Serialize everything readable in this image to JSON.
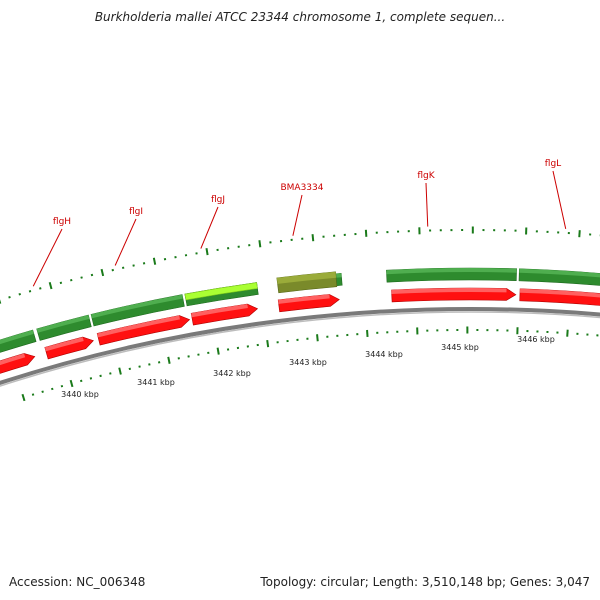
{
  "header": {
    "title": "Burkholderia mallei ATCC 23344 chromosome 1, complete sequen..."
  },
  "footer": {
    "accession": "Accession: NC_006348",
    "summary": "Topology: circular; Length: 3,510,148 bp; Genes: 3,047"
  },
  "gene_labels": [
    "flgH",
    "flgI",
    "flgJ",
    "BMA3334",
    "flgK",
    "flgL"
  ],
  "scale_labels": [
    "3440 kbp",
    "3441 kbp",
    "3442 kbp",
    "3443 kbp",
    "3444 kbp",
    "3445 kbp",
    "3446 kbp"
  ],
  "colors": {
    "cds_red": "#ff1010",
    "gene_green": "#2e8b2e",
    "highlight_lime": "#aaff33",
    "pseudo_olive": "#7a8a2a",
    "backbone_gray": "#7a7a7a",
    "tick_green": "#1a7a1a",
    "label_red": "#cc0000"
  }
}
